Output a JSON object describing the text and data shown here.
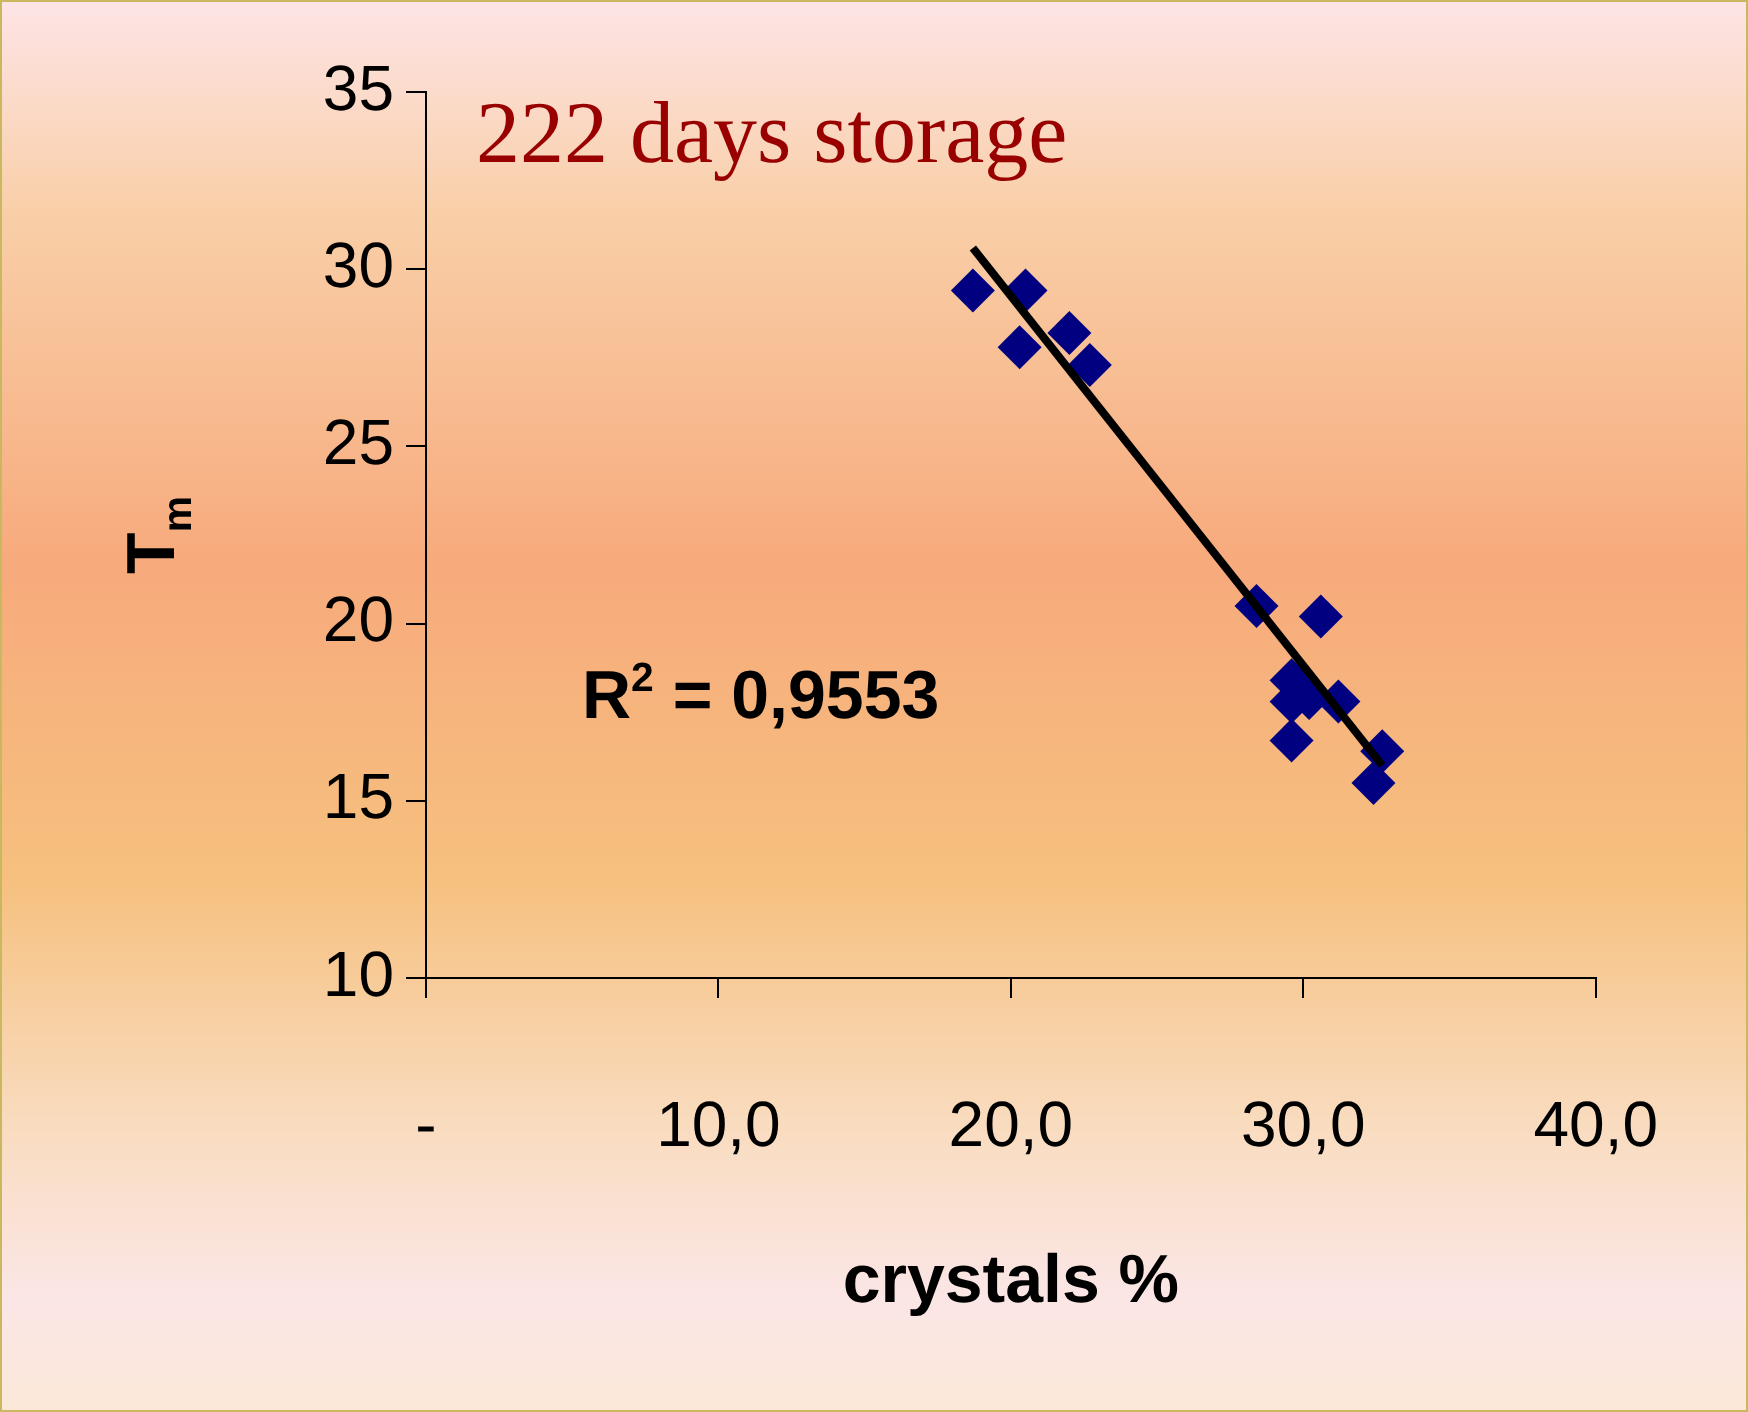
{
  "chart_data": {
    "type": "scatter",
    "title": "222 days storage",
    "xlabel": "crystals %",
    "ylabel": "T$_{m}$",
    "annotations": [
      "R$^{2}$ = 0,9553"
    ],
    "xlim": [
      0,
      40
    ],
    "xticks": [
      {
        "value": 0,
        "label": "-"
      },
      {
        "value": 10,
        "label": "10,0"
      },
      {
        "value": 20,
        "label": "20,0"
      },
      {
        "value": 30,
        "label": "30,0"
      },
      {
        "value": 40,
        "label": "40,0"
      }
    ],
    "ylim": [
      10,
      35
    ],
    "yticks": [
      10,
      15,
      20,
      25,
      30,
      35
    ],
    "grid": false,
    "legend": false,
    "marker": "diamond",
    "series": [
      {
        "color": "#000080",
        "x": [
          18.7,
          20.5,
          20.3,
          22.0,
          22.7,
          28.4,
          30.6,
          29.6,
          29.6,
          30.2,
          31.2,
          29.6,
          32.7,
          32.4
        ],
        "values": [
          29.4,
          29.4,
          27.8,
          28.2,
          27.3,
          20.5,
          20.2,
          18.4,
          17.8,
          17.9,
          17.8,
          16.7,
          16.4,
          15.5
        ]
      },
      {
        "type": "line",
        "color": "#000000",
        "marker": "none",
        "x": [
          18.7,
          32.7
        ],
        "values": [
          30.6,
          16.0
        ]
      }
    ]
  }
}
